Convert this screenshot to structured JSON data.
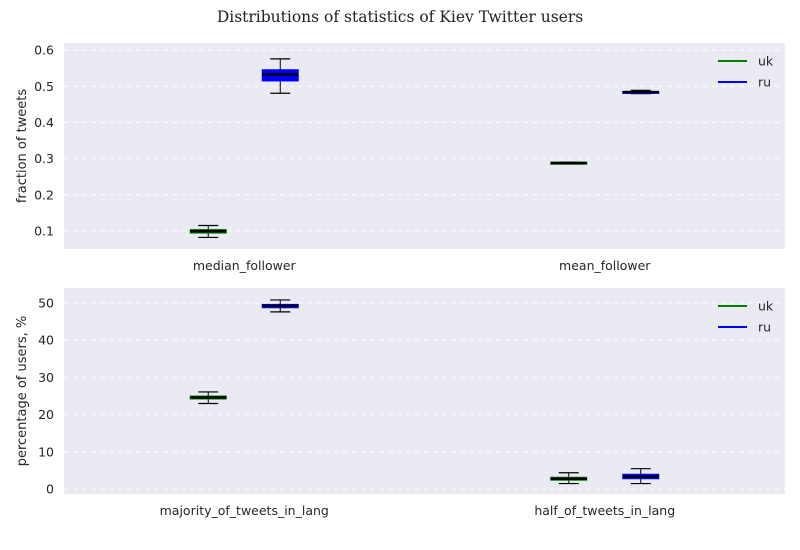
{
  "figure": {
    "title": "Distributions of statistics of Kiev Twitter users"
  },
  "chart_data": [
    {
      "type": "boxplot",
      "ylabel": "fraction of tweets",
      "ylim": [
        0.05,
        0.62
      ],
      "yticks": [
        0.1,
        0.2,
        0.3,
        0.4,
        0.5,
        0.6
      ],
      "ytick_labels": [
        "0.1",
        "0.2",
        "0.3",
        "0.4",
        "0.5",
        "0.6"
      ],
      "categories": [
        "median_follower",
        "mean_follower"
      ],
      "grid": true,
      "legend_position": "top-right",
      "series": [
        {
          "name": "uk",
          "color": "#008000",
          "boxes": [
            {
              "whislo": 0.082,
              "q1": 0.094,
              "med": 0.099,
              "q3": 0.104,
              "whishi": 0.115
            },
            {
              "whislo": 0.286,
              "q1": 0.286,
              "med": 0.288,
              "q3": 0.29,
              "whishi": 0.29
            }
          ]
        },
        {
          "name": "ru",
          "color": "#0000ff",
          "boxes": [
            {
              "whislo": 0.481,
              "q1": 0.515,
              "med": 0.533,
              "q3": 0.546,
              "whishi": 0.576
            },
            {
              "whislo": 0.48,
              "q1": 0.482,
              "med": 0.484,
              "q3": 0.486,
              "whishi": 0.489
            }
          ]
        }
      ]
    },
    {
      "type": "boxplot",
      "ylabel": "percentage of users, %",
      "ylim": [
        -1.3,
        54
      ],
      "yticks": [
        0,
        10,
        20,
        30,
        40,
        50
      ],
      "ytick_labels": [
        "0",
        "10",
        "20",
        "30",
        "40",
        "50"
      ],
      "categories": [
        "majority_of_tweets_in_lang",
        "half_of_tweets_in_lang"
      ],
      "grid": true,
      "legend_position": "top-right",
      "series": [
        {
          "name": "uk",
          "color": "#008000",
          "boxes": [
            {
              "whislo": 23.0,
              "q1": 24.2,
              "med": 24.6,
              "q3": 25.0,
              "whishi": 26.1
            },
            {
              "whislo": 1.5,
              "q1": 2.4,
              "med": 2.8,
              "q3": 3.2,
              "whishi": 4.4
            }
          ]
        },
        {
          "name": "ru",
          "color": "#0000ff",
          "boxes": [
            {
              "whislo": 47.6,
              "q1": 48.7,
              "med": 49.2,
              "q3": 49.6,
              "whishi": 50.8
            },
            {
              "whislo": 1.5,
              "q1": 2.8,
              "med": 3.4,
              "q3": 4.0,
              "whishi": 5.5
            }
          ]
        }
      ]
    }
  ]
}
